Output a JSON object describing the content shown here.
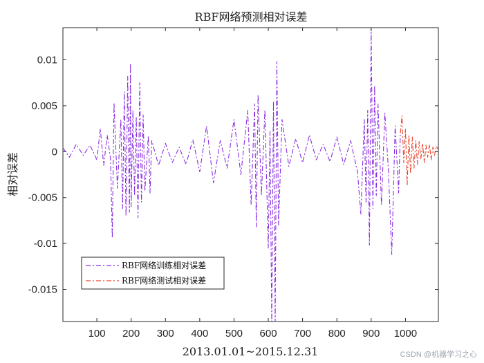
{
  "chart_data": {
    "type": "line",
    "title": "RBF网络预测相对误差",
    "xlabel": "2013.01.01~2015.12.31",
    "ylabel": "相对误差",
    "xlim": [
      1,
      1096
    ],
    "ylim": [
      -0.0185,
      0.0135
    ],
    "x_ticks": [
      100,
      200,
      300,
      400,
      500,
      600,
      700,
      800,
      900,
      1000
    ],
    "y_ticks": [
      -0.015,
      -0.01,
      -0.005,
      0,
      0.005,
      0.01
    ],
    "y_tick_labels": [
      "-0.015",
      "-0.01",
      "-0.005",
      "0",
      "0.005",
      "0.01"
    ],
    "legend_position": "bottom-left",
    "grid": false,
    "series": [
      {
        "name": "RBF网络训练相对误差",
        "color": "#8a2be2",
        "linestyle": "dash-dot",
        "x": [
          1,
          20,
          40,
          60,
          80,
          100,
          110,
          120,
          130,
          140,
          145,
          150,
          160,
          170,
          175,
          180,
          185,
          190,
          195,
          198,
          200,
          205,
          210,
          215,
          220,
          225,
          230,
          235,
          240,
          250,
          255,
          260,
          280,
          300,
          320,
          340,
          360,
          380,
          400,
          420,
          440,
          460,
          480,
          500,
          520,
          540,
          550,
          560,
          565,
          570,
          580,
          590,
          600,
          605,
          610,
          615,
          620,
          625,
          630,
          640,
          660,
          680,
          700,
          720,
          740,
          760,
          780,
          800,
          820,
          840,
          860,
          870,
          880,
          885,
          890,
          895,
          900,
          905,
          910,
          915,
          920,
          930,
          940,
          950,
          960,
          970,
          980,
          985
        ],
        "y": [
          0.0004,
          -0.0006,
          0.0008,
          -0.0004,
          0.0007,
          -0.0009,
          0.0025,
          -0.0015,
          0.0018,
          -0.0008,
          -0.0094,
          0.0053,
          -0.004,
          0.0035,
          -0.0062,
          0.0065,
          -0.007,
          0.0082,
          -0.0066,
          0.0096,
          -0.006,
          0.0045,
          -0.0048,
          0.0038,
          -0.0072,
          0.0075,
          -0.0055,
          0.004,
          -0.0043,
          0.0017,
          -0.0045,
          0.0012,
          -0.0015,
          0.0009,
          -0.0012,
          0.0005,
          -0.0014,
          0.0013,
          -0.0022,
          0.0028,
          -0.0034,
          0.0012,
          -0.0018,
          0.0035,
          -0.0025,
          0.0045,
          -0.0058,
          0.0052,
          -0.0082,
          0.0062,
          -0.0048,
          0.0045,
          -0.0105,
          0.0022,
          -0.0185,
          0.0055,
          -0.0185,
          0.0098,
          -0.008,
          0.0035,
          -0.0016,
          0.0014,
          -0.0012,
          0.0018,
          -0.0009,
          0.0008,
          -0.0011,
          0.0016,
          -0.0014,
          0.0012,
          -0.0022,
          -0.0068,
          0.0035,
          -0.0055,
          0.0045,
          -0.0102,
          0.0135,
          -0.0062,
          0.0072,
          -0.0048,
          0.0052,
          -0.0058,
          0.0042,
          -0.0018,
          -0.0112,
          0.0028,
          -0.0045,
          0.002
        ]
      },
      {
        "name": "RBF网络测试相对误差",
        "color": "#e8432a",
        "linestyle": "dash-dot",
        "x": [
          985,
          990,
          995,
          1000,
          1005,
          1010,
          1015,
          1020,
          1025,
          1030,
          1035,
          1040,
          1045,
          1050,
          1055,
          1060,
          1065,
          1070,
          1075,
          1080,
          1085,
          1090,
          1096
        ],
        "y": [
          0.002,
          0.0039,
          -0.0012,
          0.0025,
          -0.0037,
          0.0018,
          -0.0024,
          0.0016,
          -0.0018,
          0.0012,
          -0.0014,
          0.0011,
          -0.0008,
          0.0009,
          -0.0012,
          0.0007,
          -0.0006,
          0.0008,
          -0.0009,
          0.0005,
          -0.0004,
          0.0006,
          0.0002
        ]
      }
    ]
  },
  "watermark": "CSDN @机器学习之心"
}
